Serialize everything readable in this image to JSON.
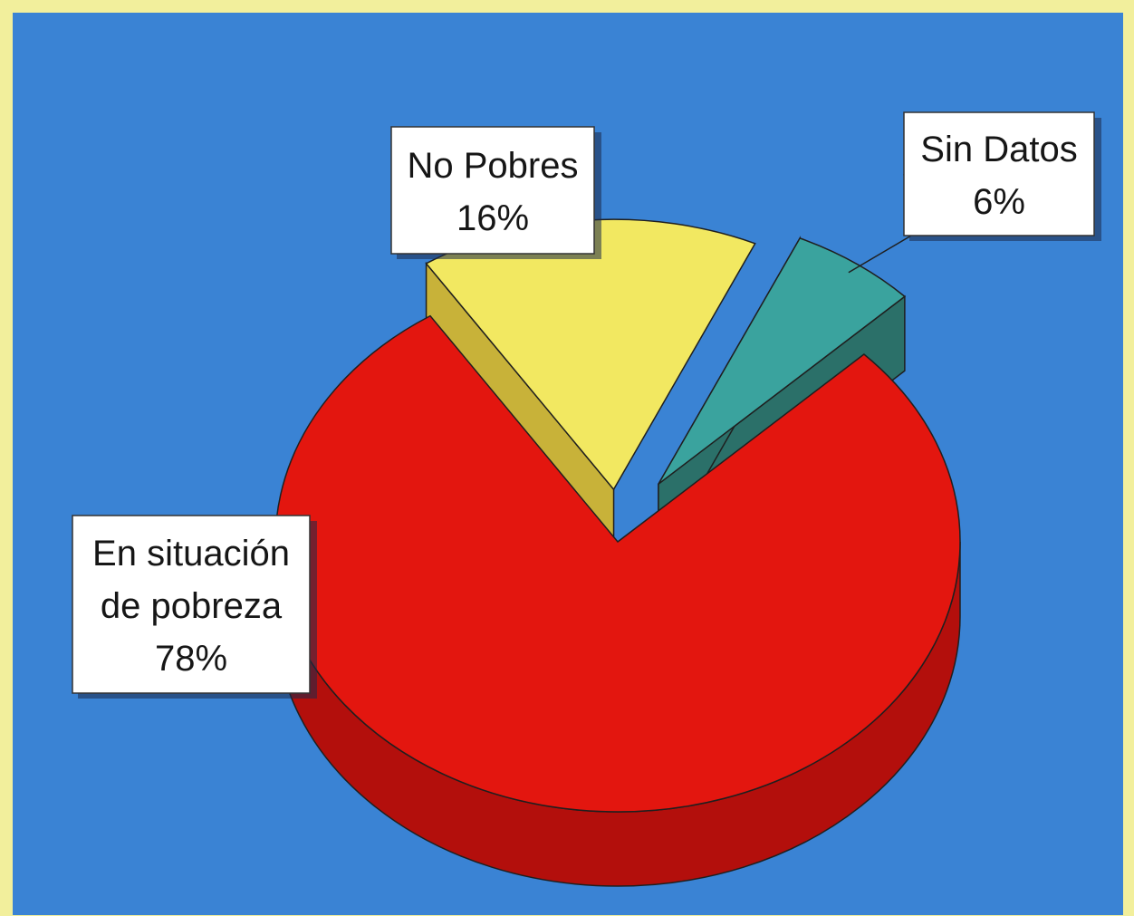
{
  "chart_data": {
    "type": "pie",
    "title": "",
    "slices": [
      {
        "name": "En situación de pobreza",
        "label_lines": [
          "En situación",
          "de pobreza"
        ],
        "value": 78,
        "value_label": "78%",
        "color": "#e3160f",
        "side_color": "#b30f0c"
      },
      {
        "name": "No Pobres",
        "label_lines": [
          "No Pobres"
        ],
        "value": 16,
        "value_label": "16%",
        "color": "#f2e861",
        "side_color": "#d9c23e"
      },
      {
        "name": "Sin Datos",
        "label_lines": [
          "Sin Datos"
        ],
        "value": 6,
        "value_label": "6%",
        "color": "#3aa39e",
        "side_color": "#2f7a72"
      }
    ],
    "style": {
      "pie_3d": true,
      "exploded": [
        "No Pobres",
        "Sin Datos"
      ],
      "legend": "none"
    }
  },
  "colors": {
    "plot_background": "#3a83d4",
    "page_background": "#f2ef9c",
    "label_box": "#ffffff",
    "outline": "#1f1f1f"
  }
}
